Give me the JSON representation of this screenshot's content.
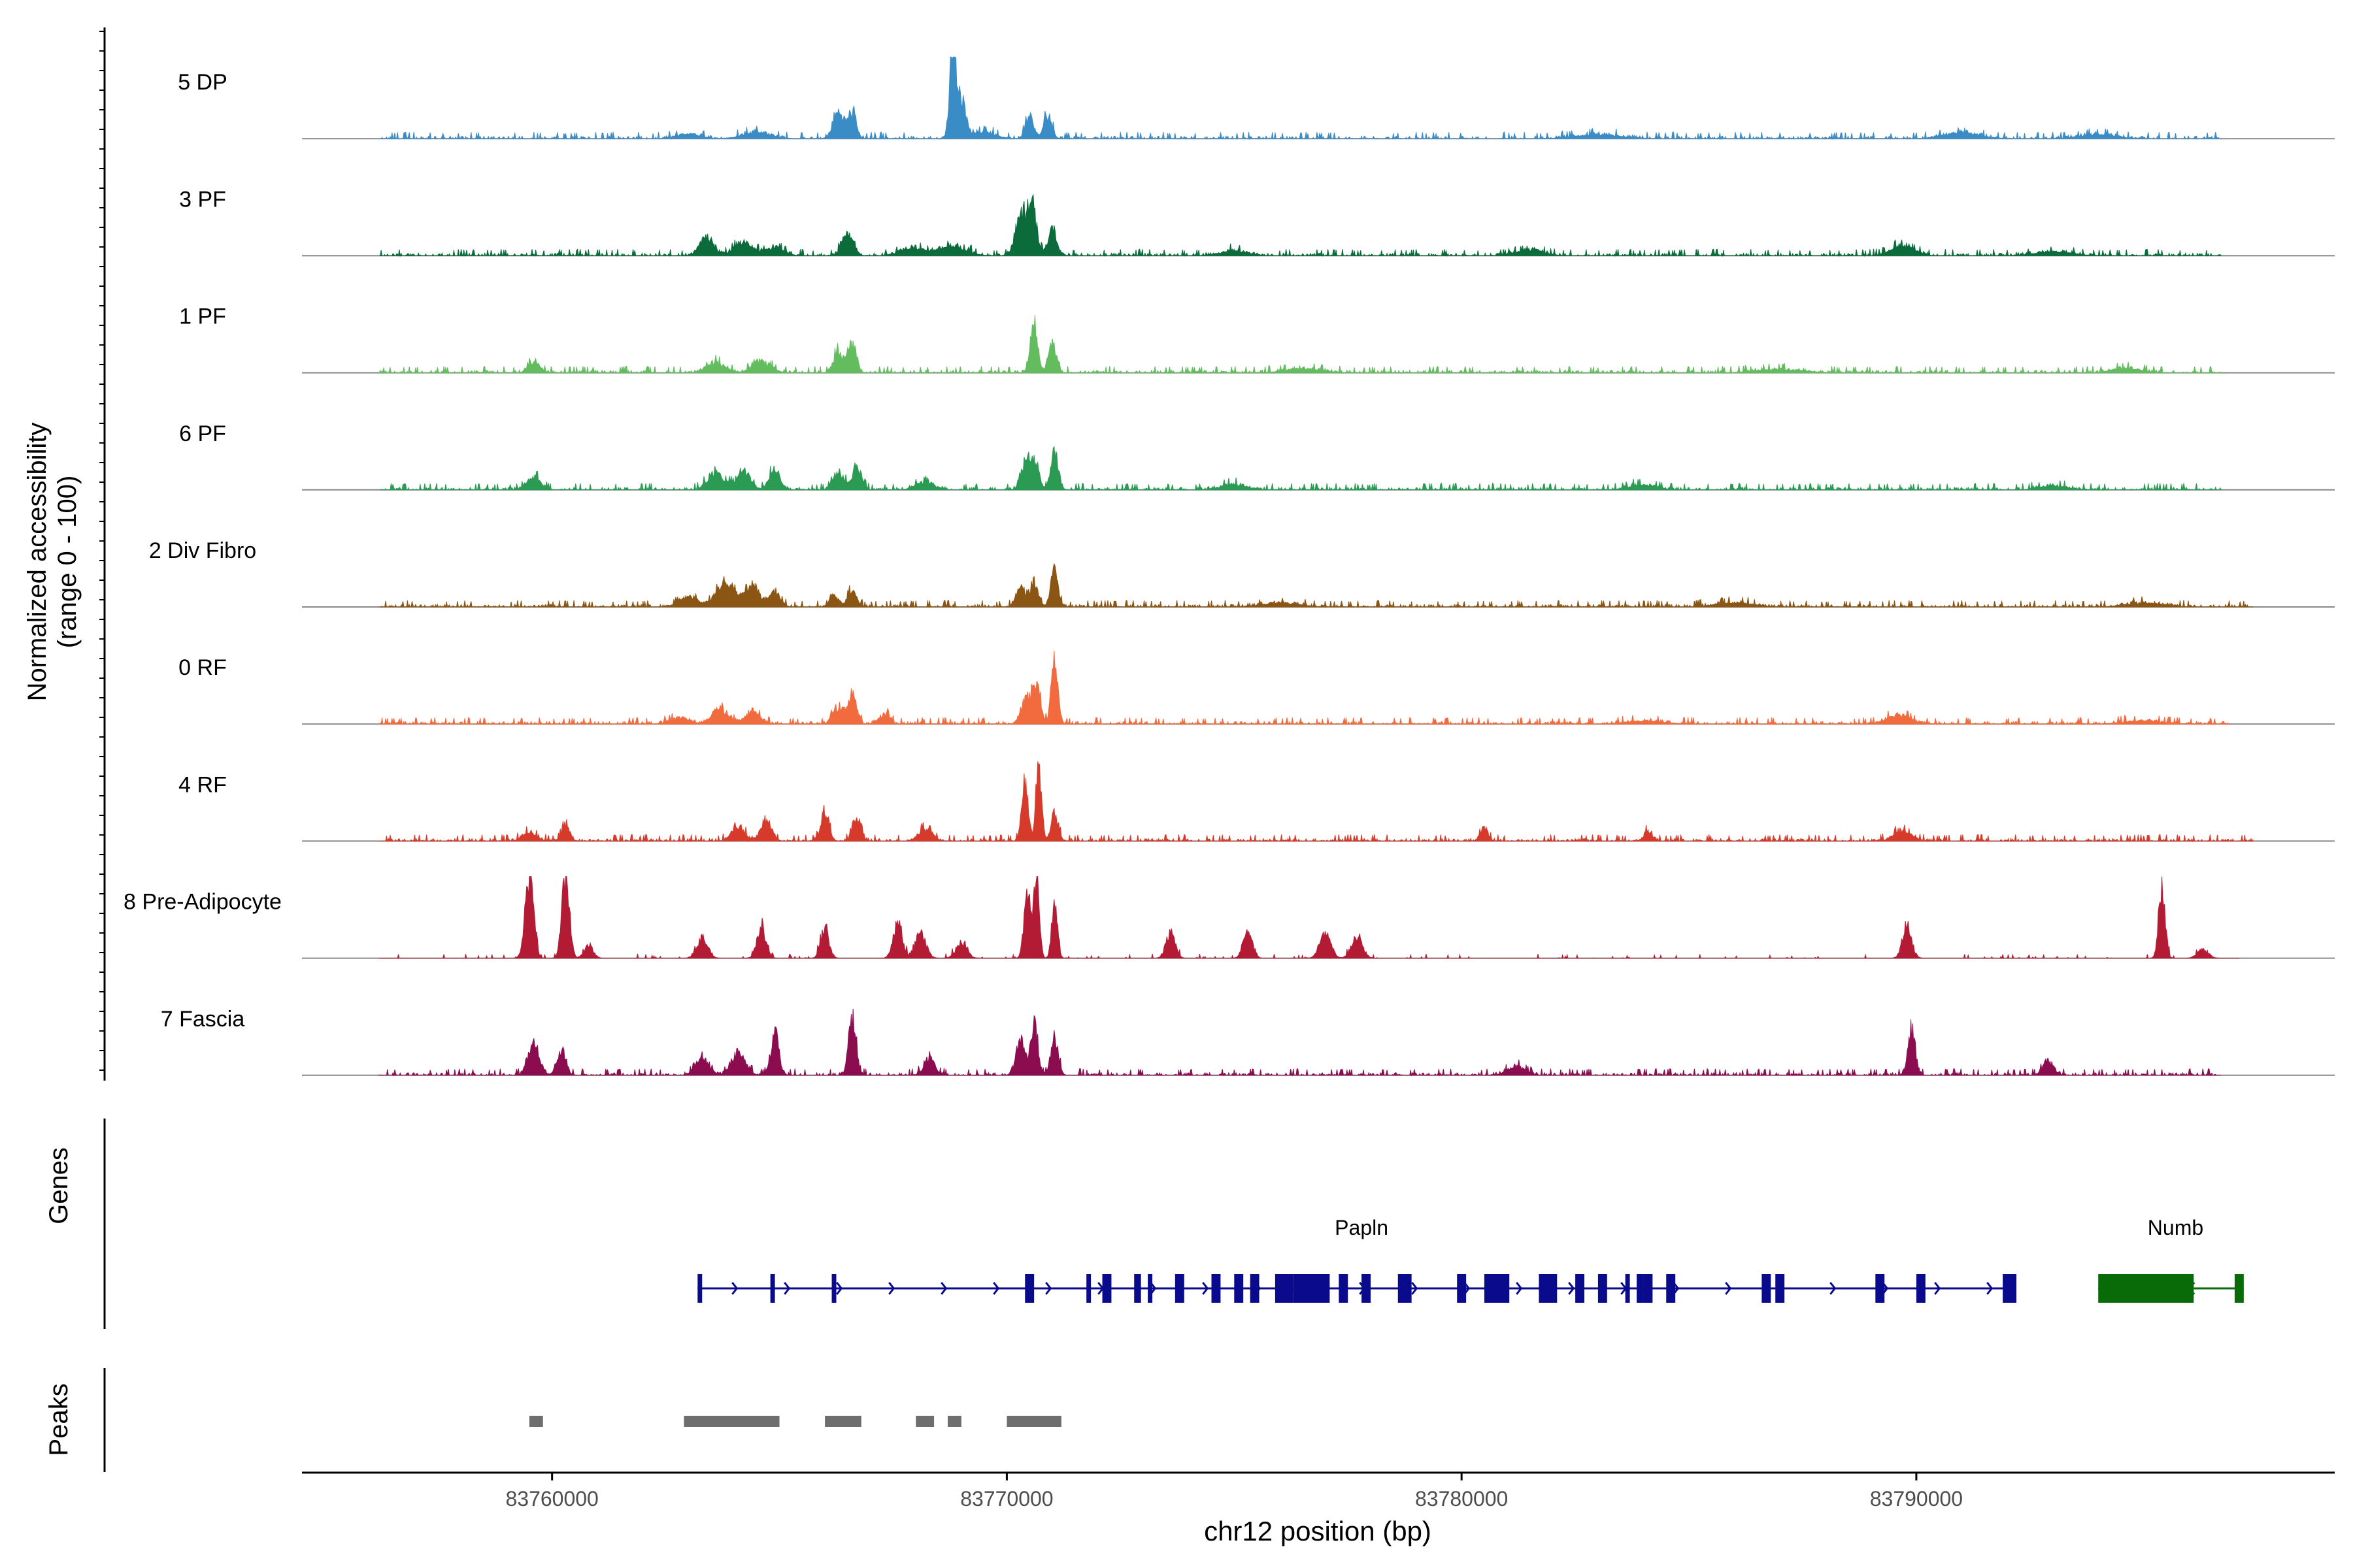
{
  "chart_data": {
    "type": "area",
    "title": "",
    "xlabel": "chr12 position (bp)",
    "ylabel": [
      "Normalized accessibility",
      "(range 0 - 100)"
    ],
    "xlim": [
      83754500,
      83799200
    ],
    "xticks": [
      83760000,
      83770000,
      83780000,
      83790000
    ],
    "xtick_labels": [
      "83760000",
      "83770000",
      "83780000",
      "83790000"
    ],
    "track_range": [
      0,
      100
    ],
    "tracks": [
      {
        "name": "5 DP",
        "color": "#3a8cc7",
        "range": [
          83756200,
          83796700
        ],
        "peaks": [
          [
            83763000,
            6,
            250
          ],
          [
            83764500,
            8,
            300
          ],
          [
            83766300,
            32,
            120
          ],
          [
            83766600,
            30,
            90
          ],
          [
            83768800,
            100,
            60
          ],
          [
            83768950,
            55,
            120
          ],
          [
            83769500,
            8,
            250
          ],
          [
            83770500,
            28,
            90
          ],
          [
            83770900,
            28,
            90
          ],
          [
            83783000,
            5,
            500
          ],
          [
            83791000,
            7,
            400
          ],
          [
            83794000,
            5,
            400
          ]
        ]
      },
      {
        "name": "3 PF",
        "color": "#0b6b3a",
        "range": [
          83756200,
          83796700
        ],
        "peaks": [
          [
            83763400,
            22,
            150
          ],
          [
            83764200,
            16,
            200
          ],
          [
            83764900,
            10,
            200
          ],
          [
            83766500,
            28,
            120
          ],
          [
            83767900,
            10,
            250
          ],
          [
            83768800,
            12,
            300
          ],
          [
            83770300,
            45,
            120
          ],
          [
            83770550,
            58,
            100
          ],
          [
            83771000,
            30,
            100
          ],
          [
            83775000,
            6,
            300
          ],
          [
            83781500,
            7,
            300
          ],
          [
            83789700,
            12,
            250
          ],
          [
            83793000,
            5,
            400
          ]
        ]
      },
      {
        "name": "1 PF",
        "color": "#63bd5e",
        "range": [
          83756200,
          83796700
        ],
        "peaks": [
          [
            83759600,
            12,
            120
          ],
          [
            83763600,
            12,
            200
          ],
          [
            83764600,
            14,
            200
          ],
          [
            83766300,
            26,
            100
          ],
          [
            83766600,
            36,
            90
          ],
          [
            83770600,
            62,
            80
          ],
          [
            83771000,
            40,
            80
          ],
          [
            83776500,
            5,
            400
          ],
          [
            83787000,
            4,
            500
          ],
          [
            83794600,
            6,
            300
          ]
        ]
      },
      {
        "name": "6 PF",
        "color": "#2b9a52",
        "range": [
          83756200,
          83796700
        ],
        "peaks": [
          [
            83759600,
            14,
            150
          ],
          [
            83763600,
            20,
            180
          ],
          [
            83764200,
            24,
            150
          ],
          [
            83764900,
            25,
            120
          ],
          [
            83766300,
            22,
            120
          ],
          [
            83766700,
            30,
            100
          ],
          [
            83768200,
            10,
            200
          ],
          [
            83770400,
            30,
            100
          ],
          [
            83770600,
            32,
            100
          ],
          [
            83771050,
            48,
            80
          ],
          [
            83775000,
            6,
            300
          ],
          [
            83784000,
            6,
            300
          ],
          [
            83793000,
            5,
            300
          ]
        ]
      },
      {
        "name": "2 Div Fibro",
        "color": "#8b5513",
        "range": [
          83756200,
          83797400
        ],
        "peaks": [
          [
            83763000,
            12,
            200
          ],
          [
            83763800,
            30,
            200
          ],
          [
            83764400,
            28,
            150
          ],
          [
            83764900,
            18,
            120
          ],
          [
            83766200,
            14,
            100
          ],
          [
            83766600,
            22,
            90
          ],
          [
            83770300,
            25,
            100
          ],
          [
            83770600,
            30,
            90
          ],
          [
            83771050,
            46,
            80
          ],
          [
            83776000,
            5,
            400
          ],
          [
            83786000,
            5,
            400
          ],
          [
            83795000,
            5,
            400
          ]
        ]
      },
      {
        "name": "0 RF",
        "color": "#f26b3f",
        "range": [
          83756200,
          83796900
        ],
        "peaks": [
          [
            83762800,
            8,
            200
          ],
          [
            83763700,
            18,
            180
          ],
          [
            83764400,
            16,
            150
          ],
          [
            83766300,
            20,
            120
          ],
          [
            83766600,
            38,
            90
          ],
          [
            83767300,
            12,
            120
          ],
          [
            83770400,
            30,
            100
          ],
          [
            83770650,
            50,
            90
          ],
          [
            83771050,
            78,
            70
          ],
          [
            83789600,
            12,
            250
          ],
          [
            83784000,
            4,
            400
          ],
          [
            83795000,
            4,
            400
          ]
        ]
      },
      {
        "name": "4 RF",
        "color": "#d63a2a",
        "range": [
          83756200,
          83797400
        ],
        "peaks": [
          [
            83759500,
            10,
            150
          ],
          [
            83760300,
            20,
            90
          ],
          [
            83764100,
            16,
            150
          ],
          [
            83764700,
            22,
            120
          ],
          [
            83766000,
            32,
            90
          ],
          [
            83766700,
            30,
            90
          ],
          [
            83768200,
            14,
            150
          ],
          [
            83770400,
            70,
            70
          ],
          [
            83770700,
            98,
            60
          ],
          [
            83771050,
            32,
            80
          ],
          [
            83780500,
            16,
            80
          ],
          [
            83784100,
            12,
            90
          ],
          [
            83789700,
            12,
            200
          ]
        ]
      },
      {
        "name": "8 Pre-Adipocyte",
        "color": "#b31b35",
        "range": [
          83756200,
          83797100
        ],
        "peaks": [
          [
            83759500,
            100,
            90
          ],
          [
            83760300,
            100,
            80
          ],
          [
            83760800,
            14,
            100
          ],
          [
            83763300,
            24,
            120
          ],
          [
            83764600,
            35,
            100
          ],
          [
            83766000,
            35,
            90
          ],
          [
            83767600,
            40,
            100
          ],
          [
            83768100,
            28,
            120
          ],
          [
            83769000,
            18,
            120
          ],
          [
            83770450,
            85,
            70
          ],
          [
            83770650,
            100,
            60
          ],
          [
            83771050,
            70,
            60
          ],
          [
            83773600,
            30,
            100
          ],
          [
            83775300,
            30,
            100
          ],
          [
            83777000,
            28,
            120
          ],
          [
            83777700,
            25,
            120
          ],
          [
            83789800,
            38,
            100
          ],
          [
            83795400,
            86,
            70
          ],
          [
            83796300,
            10,
            120
          ]
        ]
      },
      {
        "name": "7 Fascia",
        "color": "#8c0d4f",
        "range": [
          83756200,
          83796700
        ],
        "peaks": [
          [
            83759600,
            38,
            120
          ],
          [
            83760200,
            30,
            100
          ],
          [
            83763300,
            20,
            150
          ],
          [
            83764100,
            26,
            150
          ],
          [
            83764900,
            50,
            90
          ],
          [
            83766600,
            70,
            80
          ],
          [
            83768300,
            20,
            120
          ],
          [
            83770300,
            40,
            100
          ],
          [
            83770600,
            60,
            80
          ],
          [
            83771050,
            48,
            80
          ],
          [
            83781200,
            10,
            200
          ],
          [
            83789900,
            55,
            80
          ],
          [
            83792900,
            16,
            120
          ]
        ]
      }
    ],
    "genes": [
      {
        "name": "Papln",
        "color": "#0a0a8c",
        "start": 83763200,
        "end": 83792200,
        "strand": "+",
        "exons": [
          [
            83763200,
            83763300
          ],
          [
            83764800,
            83764900
          ],
          [
            83766150,
            83766250
          ],
          [
            83770400,
            83770600
          ],
          [
            83771750,
            83771850
          ],
          [
            83772100,
            83772300
          ],
          [
            83772800,
            83772950
          ],
          [
            83773100,
            83773200
          ],
          [
            83773700,
            83773900
          ],
          [
            83774500,
            83774700
          ],
          [
            83775000,
            83775200
          ],
          [
            83775350,
            83775550
          ],
          [
            83775900,
            83776300
          ],
          [
            83776300,
            83777100
          ],
          [
            83777300,
            83777500
          ],
          [
            83777800,
            83778000
          ],
          [
            83778600,
            83778900
          ],
          [
            83779900,
            83780100
          ],
          [
            83780500,
            83781050
          ],
          [
            83781700,
            83782100
          ],
          [
            83782500,
            83782700
          ],
          [
            83783000,
            83783200
          ],
          [
            83783600,
            83783700
          ],
          [
            83783850,
            83784000
          ],
          [
            83784000,
            83784200
          ],
          [
            83784500,
            83784700
          ],
          [
            83786600,
            83786800
          ],
          [
            83786900,
            83787100
          ],
          [
            83789100,
            83789300
          ],
          [
            83790000,
            83790200
          ],
          [
            83791900,
            83792200
          ]
        ]
      },
      {
        "name": "Numb",
        "color": "#086b08",
        "start": 83794000,
        "end": 83797200,
        "strand": "-",
        "exons": [
          [
            83794000,
            83796100
          ],
          [
            83797000,
            83797200
          ]
        ]
      }
    ],
    "peaks_track": {
      "name": "Peaks",
      "color": "#6e6e6e",
      "regions": [
        [
          83759500,
          83759800
        ],
        [
          83762900,
          83765000
        ],
        [
          83766000,
          83766800
        ],
        [
          83768000,
          83768400
        ],
        [
          83768700,
          83769000
        ],
        [
          83770000,
          83771200
        ]
      ]
    },
    "panels": {
      "genes_label": "Genes",
      "peaks_label": "Peaks"
    }
  }
}
